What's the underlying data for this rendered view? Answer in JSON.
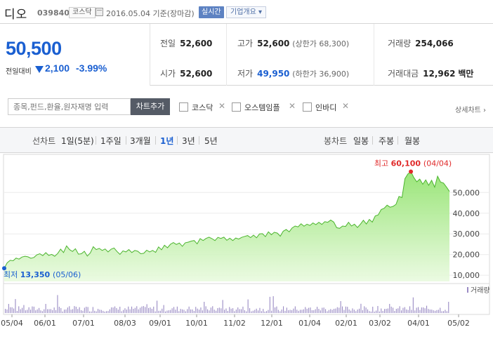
{
  "header": {
    "stock_name": "디오",
    "stock_code": "039840",
    "market_badge": "코스닥",
    "date": "2016.05.04 기준(장마감)",
    "realtime_button": "실시간",
    "overview_button": "기업개요 ▾"
  },
  "price": {
    "current": "50,500",
    "change_label": "전일대비",
    "change": "2,100",
    "change_pct": "-3.99%",
    "direction": "down",
    "color": "#1a5fd1"
  },
  "stats": {
    "prev_close": {
      "label": "전일",
      "value": "52,600"
    },
    "open": {
      "label": "시가",
      "value": "52,600"
    },
    "high": {
      "label": "고가",
      "value": "52,600",
      "sub": "(상한가 68,300)"
    },
    "low": {
      "label": "저가",
      "value": "49,950",
      "sub": "(하한가 36,900)"
    },
    "volume": {
      "label": "거래량",
      "value": "254,066"
    },
    "amount": {
      "label": "거래대금",
      "value": "12,962",
      "unit": "백만"
    }
  },
  "compare": {
    "search_placeholder": "종목,펀드,환율,원자재명 입력",
    "add_button": "차트추가",
    "items": [
      {
        "label": "코스닥",
        "checked": false
      },
      {
        "label": "오스템임플",
        "checked": false
      },
      {
        "label": "인바디",
        "checked": false
      }
    ],
    "detail_link": "상세차트 ›"
  },
  "periods": {
    "line_label": "선차트",
    "line_items": [
      "1일(5분)",
      "1주일",
      "3개월",
      "1년",
      "3년",
      "5년"
    ],
    "selected": "1년",
    "candle_label": "봉차트",
    "candle_items": [
      "일봉",
      "주봉",
      "월봉"
    ]
  },
  "chart_data": {
    "type": "area",
    "y_ticks": [
      "10,000",
      "20,000",
      "30,000",
      "40,000",
      "50,000"
    ],
    "ylim": [
      7000,
      63000
    ],
    "x_ticks": [
      "05/04",
      "06/01",
      "07/01",
      "08/03",
      "09/01",
      "10/01",
      "11/02",
      "12/01",
      "01/04",
      "02/01",
      "03/02",
      "04/01",
      "05/02"
    ],
    "high_label": "최고",
    "high_value": "60,100",
    "high_date": "(04/04)",
    "low_label": "최저",
    "low_value": "13,350",
    "low_date": "(05/06)",
    "volume_legend": "거래량",
    "line_color": "#58c43a",
    "series": [
      {
        "values": [
          13350,
          16000,
          17200,
          17000,
          18300,
          17800,
          18800,
          19200,
          18900,
          18200,
          18600,
          19900,
          20400,
          19500,
          20900,
          19600,
          20100,
          19200,
          20500,
          22600,
          21000,
          24200,
          22400,
          21500,
          22800,
          20200,
          20400,
          21600,
          19300,
          20800,
          23800,
          22400,
          23000,
          22000,
          22700,
          21300,
          22600,
          23200,
          21500,
          20100,
          21800,
          21300,
          22400,
          21000,
          22000,
          21600,
          20400,
          20600,
          22100,
          21300,
          22000,
          21100,
          23700,
          22300,
          24500,
          23300,
          25000,
          25800,
          24900,
          25600,
          24000,
          25700,
          26000,
          26500,
          26800,
          25200,
          27700,
          26800,
          27800,
          28400,
          27700,
          26800,
          28300,
          27800,
          28400,
          26900,
          27900,
          26800,
          28000,
          27500,
          28300,
          28800,
          29200,
          28200,
          29400,
          28100,
          30000,
          30100,
          28700,
          31000,
          29600,
          30800,
          30400,
          28900,
          31300,
          32100,
          31000,
          32900,
          33800,
          33400,
          34900,
          33700,
          34700,
          34100,
          35300,
          34500,
          35600,
          34600,
          35900,
          35600,
          36700,
          35700,
          33000,
          32700,
          33800,
          33600,
          35600,
          33800,
          34700,
          33100,
          34700,
          36600,
          34800,
          37000,
          35700,
          38700,
          39200,
          41800,
          42400,
          43900,
          42900,
          43300,
          44300,
          48100,
          47600,
          56700,
          59000,
          60100,
          57200,
          55200,
          56500,
          54000,
          56100,
          53500,
          55900,
          52600,
          57900,
          55100,
          54600,
          52600,
          50500
        ]
      }
    ]
  }
}
